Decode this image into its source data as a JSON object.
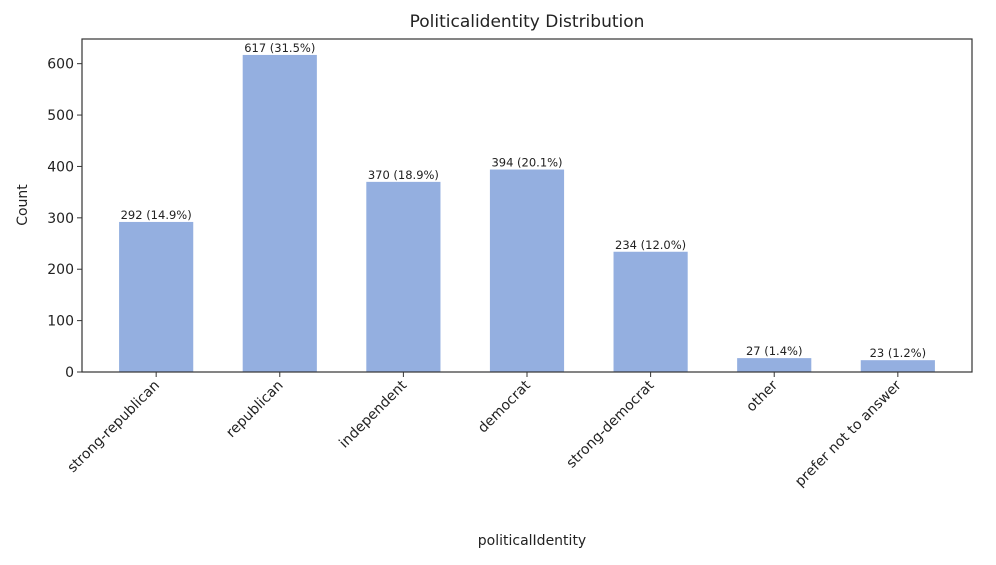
{
  "chart_data": {
    "type": "bar",
    "title": "Politicalidentity Distribution",
    "xlabel": "politicalIdentity",
    "ylabel": "Count",
    "categories": [
      "strong-republican",
      "republican",
      "independent",
      "democrat",
      "strong-democrat",
      "other",
      "prefer not to answer"
    ],
    "values": [
      292,
      617,
      370,
      394,
      234,
      27,
      23
    ],
    "data_labels": [
      "292 (14.9%)",
      "617 (31.5%)",
      "370 (18.9%)",
      "394 (20.1%)",
      "234 (12.0%)",
      "27 (1.4%)",
      "23 (1.2%)"
    ],
    "yticks": [
      0,
      100,
      200,
      300,
      400,
      500,
      600
    ],
    "ylim": [
      0,
      648
    ],
    "grid": false,
    "bar_color": "#94afe0"
  }
}
